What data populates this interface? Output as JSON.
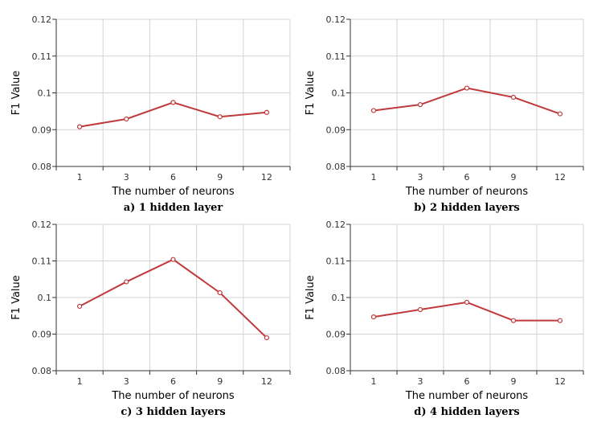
{
  "colors": {
    "line": "#c0393b",
    "grid": "#d3d3d3",
    "axis": "#333333"
  },
  "chart_data": [
    {
      "type": "line",
      "caption": "a) 1 hidden layer",
      "xlabel": "The number of neurons",
      "ylabel": "F1 Value",
      "categories": [
        "1",
        "3",
        "6",
        "9",
        "12"
      ],
      "ylim": [
        0.08,
        0.12
      ],
      "yticks": [
        "0.08",
        "0.09",
        "0.1",
        "0.11",
        "0.12"
      ],
      "values": [
        0.0908,
        0.0929,
        0.0974,
        0.0935,
        0.0947
      ],
      "grid": true
    },
    {
      "type": "line",
      "caption": "b) 2 hidden layers",
      "xlabel": "The number of neurons",
      "ylabel": "F1 Value",
      "categories": [
        "1",
        "3",
        "6",
        "9",
        "12"
      ],
      "ylim": [
        0.08,
        0.12
      ],
      "yticks": [
        "0.08",
        "0.09",
        "0.1",
        "0.11",
        "0.12"
      ],
      "values": [
        0.0952,
        0.0968,
        0.1013,
        0.0988,
        0.0943
      ],
      "grid": true
    },
    {
      "type": "line",
      "caption": "c) 3 hidden layers",
      "xlabel": "The number of neurons",
      "ylabel": "F1 Value",
      "categories": [
        "1",
        "3",
        "6",
        "9",
        "12"
      ],
      "ylim": [
        0.08,
        0.12
      ],
      "yticks": [
        "0.08",
        "0.09",
        "0.1",
        "0.11",
        "0.12"
      ],
      "values": [
        0.0976,
        0.1043,
        0.1104,
        0.1013,
        0.089
      ],
      "grid": true
    },
    {
      "type": "line",
      "caption": "d) 4 hidden layers",
      "xlabel": "The number of neurons",
      "ylabel": "F1 Value",
      "categories": [
        "1",
        "3",
        "6",
        "9",
        "12"
      ],
      "ylim": [
        0.08,
        0.12
      ],
      "yticks": [
        "0.08",
        "0.09",
        "0.1",
        "0.11",
        "0.12"
      ],
      "values": [
        0.0947,
        0.0967,
        0.0987,
        0.0937,
        0.0937
      ],
      "grid": true
    }
  ]
}
